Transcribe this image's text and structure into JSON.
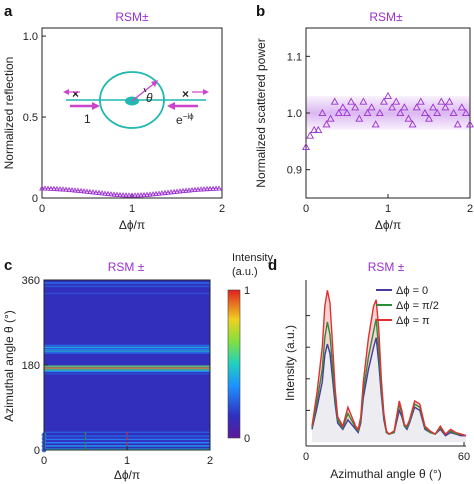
{
  "panels": {
    "a": {
      "label": "a",
      "title": "RSM±"
    },
    "b": {
      "label": "b",
      "title": "RSM±"
    },
    "c": {
      "label": "c",
      "title": "RSM ±",
      "colorbar_title": "Intensity",
      "colorbar_unit": "(a.u.)",
      "colorbar_max": "1",
      "colorbar_min": "0"
    },
    "d": {
      "label": "d",
      "title": "RSM ±"
    }
  },
  "inset": {
    "input_left": "1",
    "input_right": "e",
    "input_right_sup": "−iϕ",
    "angle_symbol": "θ",
    "cross": "×"
  },
  "colors": {
    "accent": "#9b30d0",
    "ring": "#20b8b0",
    "arrow": "#cc44cc",
    "band": "#b060e0"
  },
  "chart_data": [
    {
      "id": "a",
      "type": "line",
      "title": "RSM±",
      "xlabel": "Δϕ/π",
      "ylabel": "Normalized reflection",
      "xlim": [
        0,
        2
      ],
      "ylim": [
        0,
        1.05
      ],
      "xticks": [
        "0",
        "1",
        "2"
      ],
      "yticks": [
        "0",
        "0.5",
        "1.0"
      ],
      "series": [
        {
          "marker": "triangle",
          "x": [
            0,
            0.1,
            0.2,
            0.3,
            0.4,
            0.5,
            0.6,
            0.7,
            0.8,
            0.9,
            1.0,
            1.1,
            1.2,
            1.3,
            1.4,
            1.5,
            1.6,
            1.7,
            1.8,
            1.9,
            2.0
          ],
          "values": [
            0.06,
            0.058,
            0.055,
            0.051,
            0.046,
            0.04,
            0.034,
            0.028,
            0.022,
            0.018,
            0.016,
            0.018,
            0.022,
            0.028,
            0.034,
            0.04,
            0.046,
            0.051,
            0.055,
            0.058,
            0.06
          ]
        }
      ]
    },
    {
      "id": "b",
      "type": "scatter",
      "title": "RSM±",
      "xlabel": "Δϕ/π",
      "ylabel": "Normalized scattered power",
      "xlim": [
        0,
        2
      ],
      "ylim": [
        0.85,
        1.15
      ],
      "xticks": [
        "0",
        "1",
        "2"
      ],
      "yticks": [
        "0.9",
        "1.0",
        "1.1"
      ],
      "band": [
        0.97,
        1.03
      ],
      "x": [
        0.0,
        0.05,
        0.1,
        0.15,
        0.2,
        0.25,
        0.3,
        0.35,
        0.4,
        0.45,
        0.5,
        0.55,
        0.6,
        0.65,
        0.7,
        0.75,
        0.8,
        0.85,
        0.9,
        0.95,
        1.0,
        1.05,
        1.1,
        1.15,
        1.2,
        1.25,
        1.3,
        1.35,
        1.4,
        1.45,
        1.5,
        1.55,
        1.6,
        1.65,
        1.7,
        1.75,
        1.8,
        1.85,
        1.9,
        1.95,
        2.0
      ],
      "values": [
        0.94,
        0.96,
        0.97,
        0.97,
        1.0,
        0.98,
        0.99,
        1.02,
        1.0,
        1.01,
        1.0,
        1.02,
        1.01,
        0.99,
        1.02,
        1.0,
        1.01,
        0.98,
        1.0,
        1.02,
        1.03,
        1.01,
        1.02,
        1.0,
        1.01,
        0.99,
        0.98,
        1.01,
        1.02,
        1.0,
        0.99,
        1.01,
        1.0,
        1.02,
        1.01,
        1.02,
        1.0,
        0.98,
        1.01,
        1.0,
        0.98
      ]
    },
    {
      "id": "c",
      "type": "heatmap",
      "title": "RSM ±",
      "xlabel": "Δϕ/π",
      "ylabel": "Azimuthal angle θ (°)",
      "xlim": [
        0,
        2
      ],
      "ylim": [
        0,
        360
      ],
      "xticks": [
        "0",
        "1",
        "2"
      ],
      "yticks": [
        "0",
        "180",
        "360"
      ],
      "colorscale": "jet",
      "crange": [
        0,
        1
      ],
      "bands": [
        {
          "theta": 0,
          "value": 0.45
        },
        {
          "theta": 7,
          "value": 0.4
        },
        {
          "theta": 14,
          "value": 0.35
        },
        {
          "theta": 21,
          "value": 0.32
        },
        {
          "theta": 28,
          "value": 0.28
        },
        {
          "theta": 36,
          "value": 0.25
        },
        {
          "theta": 160,
          "value": 0.22
        },
        {
          "theta": 165,
          "value": 0.35
        },
        {
          "theta": 168,
          "value": 0.55
        },
        {
          "theta": 172,
          "value": 0.85
        },
        {
          "theta": 176,
          "value": 0.6
        },
        {
          "theta": 204,
          "value": 0.3
        },
        {
          "theta": 208,
          "value": 0.45
        },
        {
          "theta": 212,
          "value": 0.35
        },
        {
          "theta": 216,
          "value": 0.42
        },
        {
          "theta": 220,
          "value": 0.28
        },
        {
          "theta": 330,
          "value": 0.22
        },
        {
          "theta": 345,
          "value": 0.24
        },
        {
          "theta": 352,
          "value": 0.3
        }
      ],
      "markers": [
        {
          "x": 0.5,
          "color": "#2e8b3a"
        },
        {
          "x": 1.0,
          "color": "#d03030"
        }
      ]
    },
    {
      "id": "d",
      "type": "line",
      "title": "RSM ±",
      "xlabel": "Azimuthal angle θ (°)",
      "ylabel": "Intensity (a.u.)",
      "xlim": [
        0,
        60
      ],
      "ylim": [
        0,
        1
      ],
      "xticks": [
        "0",
        "60"
      ],
      "x": [
        0,
        2,
        4,
        5,
        6,
        7,
        8,
        9,
        10,
        12,
        14,
        16,
        17,
        18,
        19,
        20,
        22,
        24,
        25,
        26,
        27,
        28,
        29,
        30,
        32,
        34,
        35,
        36,
        37,
        38,
        40,
        42,
        44,
        46,
        48,
        50,
        52,
        54,
        56,
        58,
        60
      ],
      "series": [
        {
          "name": "Δϕ = 0",
          "color": "#4a3aa0",
          "values": [
            0.08,
            0.22,
            0.38,
            0.55,
            0.62,
            0.56,
            0.4,
            0.24,
            0.12,
            0.08,
            0.14,
            0.1,
            0.08,
            0.06,
            0.12,
            0.28,
            0.46,
            0.6,
            0.66,
            0.5,
            0.3,
            0.14,
            0.06,
            0.05,
            0.06,
            0.2,
            0.16,
            0.1,
            0.08,
            0.12,
            0.22,
            0.2,
            0.08,
            0.06,
            0.05,
            0.08,
            0.04,
            0.06,
            0.05,
            0.04,
            0.04
          ]
        },
        {
          "name": "Δϕ = π/2",
          "color": "#2e8b3a",
          "values": [
            0.09,
            0.26,
            0.46,
            0.66,
            0.76,
            0.68,
            0.48,
            0.28,
            0.14,
            0.09,
            0.18,
            0.12,
            0.09,
            0.07,
            0.14,
            0.32,
            0.54,
            0.7,
            0.78,
            0.58,
            0.34,
            0.16,
            0.06,
            0.05,
            0.06,
            0.24,
            0.18,
            0.1,
            0.09,
            0.13,
            0.24,
            0.22,
            0.09,
            0.06,
            0.05,
            0.09,
            0.05,
            0.07,
            0.05,
            0.05,
            0.04
          ]
        },
        {
          "name": "Δϕ = π",
          "color": "#e03030",
          "values": [
            0.1,
            0.32,
            0.6,
            0.86,
            0.96,
            0.88,
            0.62,
            0.34,
            0.16,
            0.1,
            0.22,
            0.14,
            0.1,
            0.08,
            0.16,
            0.38,
            0.66,
            0.86,
            0.9,
            0.72,
            0.4,
            0.18,
            0.07,
            0.05,
            0.07,
            0.26,
            0.2,
            0.11,
            0.1,
            0.14,
            0.26,
            0.24,
            0.1,
            0.07,
            0.05,
            0.1,
            0.05,
            0.08,
            0.06,
            0.05,
            0.04
          ]
        }
      ]
    }
  ]
}
